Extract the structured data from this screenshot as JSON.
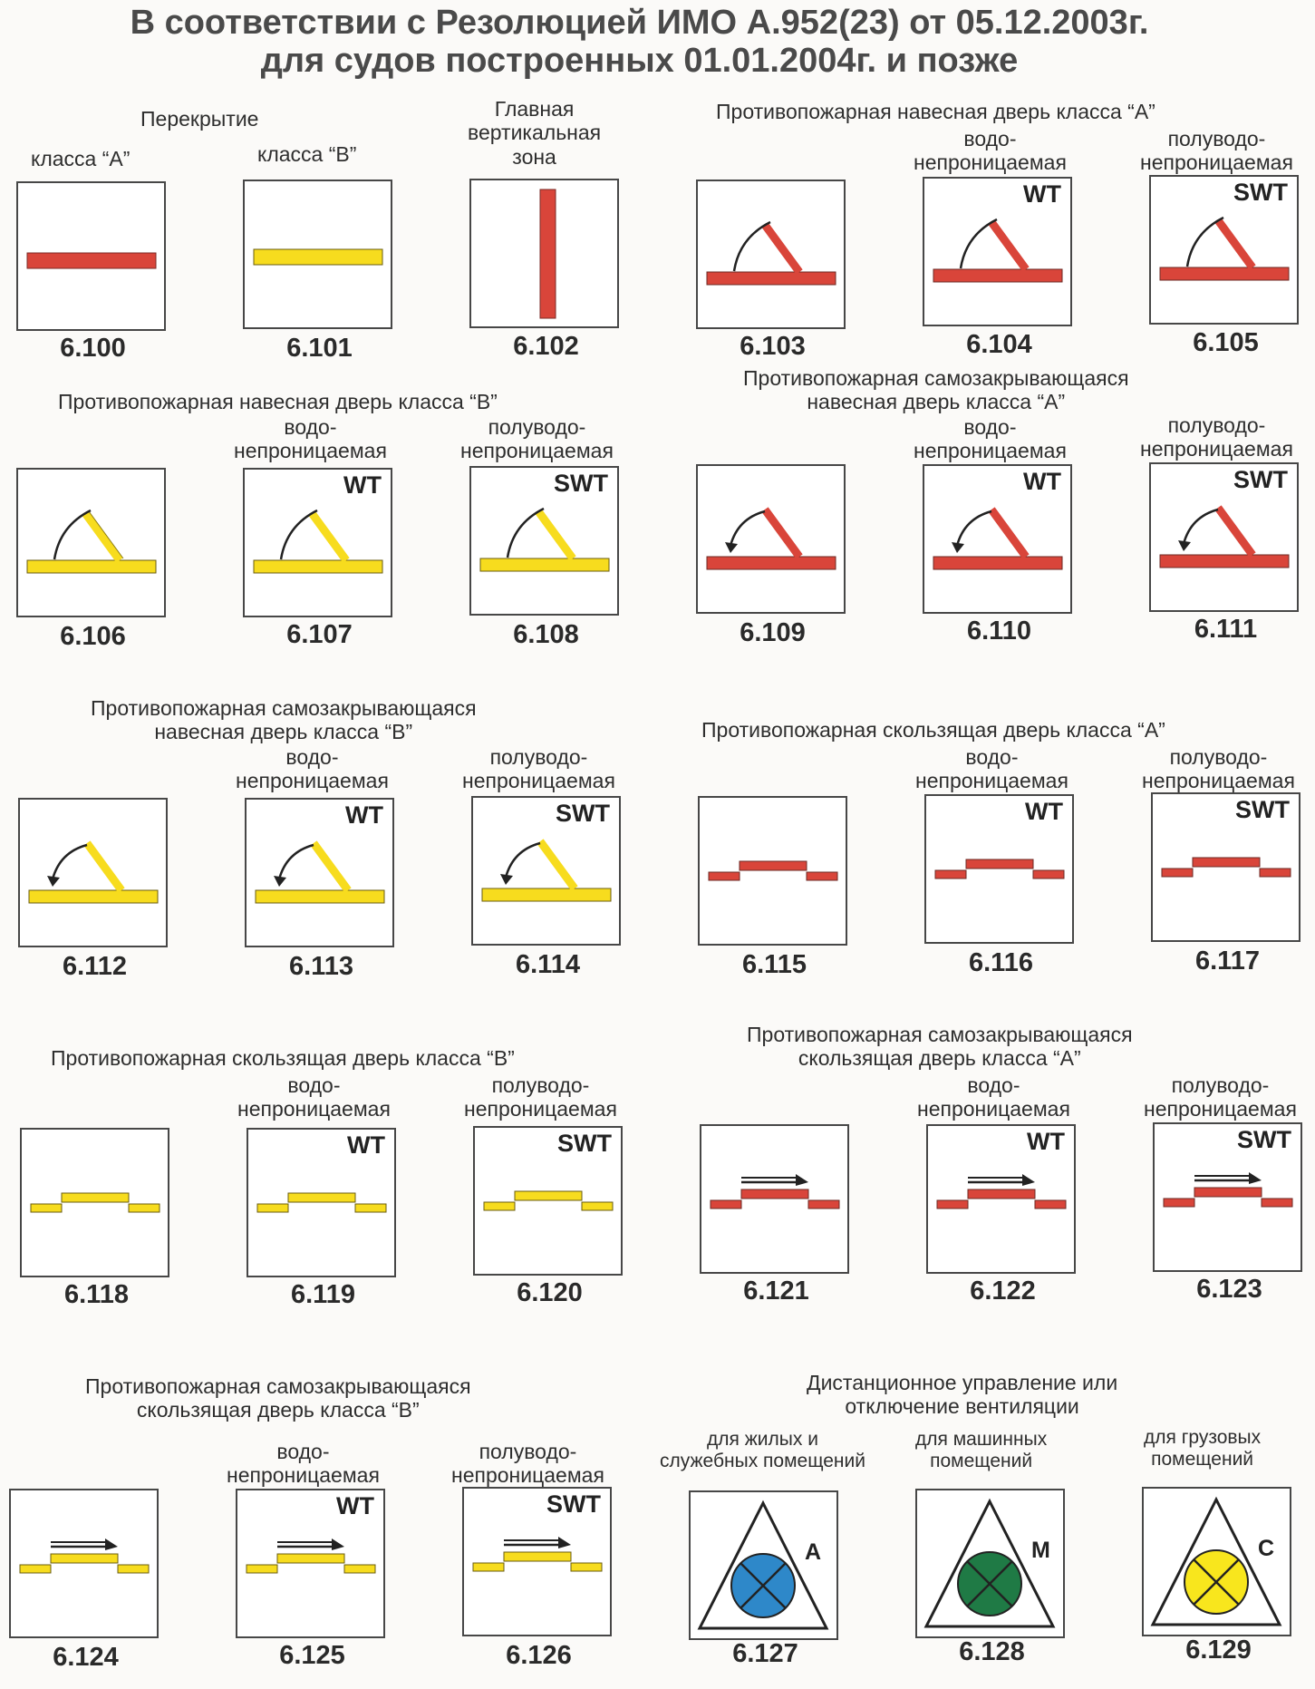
{
  "title": {
    "line1": "В соответствии с Резолюцией ИМО А.952(23) от 05.12.2003г.",
    "line2": "для судов построенных 01.01.2004г. и позже"
  },
  "colors": {
    "class_a_red": "#d9453a",
    "class_b_yellow": "#f7dc1e",
    "outline": "#3a3a3a",
    "vent_blue": "#2e88c9",
    "vent_green": "#1f7a45",
    "vent_yellow": "#f8e61d"
  },
  "sections": {
    "s1": {
      "title": "Перекрытие",
      "class_a": "класса “A”",
      "class_b": "класса “B”",
      "main_zone": "Главная\nвертикальная\nзона",
      "codes": [
        "6.100",
        "6.101",
        "6.102"
      ]
    },
    "s2": {
      "title": "Противопожарная навесная дверь класса “A”",
      "wt": "водо-\nнепроницаемая",
      "swt": "полуводо-\nнепроницаемая",
      "codes": [
        "6.103",
        "6.104",
        "6.105"
      ]
    },
    "s3": {
      "title": "Противопожарная навесная дверь класса “B”",
      "wt": "водо-\nнепроницаемая",
      "swt": "полуводо-\nнепроницаемая",
      "codes": [
        "6.106",
        "6.107",
        "6.108"
      ]
    },
    "s4": {
      "title": "Противопожарная самозакрывающаяся\nнавесная дверь класса “A”",
      "wt": "водо-\nнепроницаемая",
      "swt": "полуводо-\nнепроницаемая",
      "codes": [
        "6.109",
        "6.110",
        "6.111"
      ]
    },
    "s5": {
      "title": "Противопожарная самозакрывающаяся\nнавесная дверь класса “B”",
      "wt": "водо-\nнепроницаемая",
      "swt": "полуводо-\nнепроницаемая",
      "codes": [
        "6.112",
        "6.113",
        "6.114"
      ]
    },
    "s6": {
      "title": "Противопожарная скользящая дверь класса “A”",
      "wt": "водо-\nнепроницаемая",
      "swt": "полуводо-\nнепроницаемая",
      "codes": [
        "6.115",
        "6.116",
        "6.117"
      ]
    },
    "s7": {
      "title": "Противопожарная скользящая дверь класса “B”",
      "wt": "водо-\nнепроницаемая",
      "swt": "полуводо-\nнепроницаемая",
      "codes": [
        "6.118",
        "6.119",
        "6.120"
      ]
    },
    "s8": {
      "title": "Противопожарная самозакрывающаяся\nскользящая дверь класса “A”",
      "wt": "водо-\nнепроницаемая",
      "swt": "полуводо-\nнепроницаемая",
      "codes": [
        "6.121",
        "6.122",
        "6.123"
      ]
    },
    "s9": {
      "title": "Противопожарная самозакрывающаяся\nскользящая дверь класса “B”",
      "wt": "водо-\nнепроницаемая",
      "swt": "полуводо-\nнепроницаемая",
      "codes": [
        "6.124",
        "6.125",
        "6.126"
      ]
    },
    "s10": {
      "title": "Дистанционное управление или\nотключение вентиляции",
      "living": "для жилых и\nслужебных помещений",
      "machinery": "для машинных\nпомещений",
      "cargo": "для грузовых\nпомещений",
      "codes": [
        "6.127",
        "6.128",
        "6.129"
      ]
    }
  },
  "tags": {
    "wt": "WT",
    "swt": "SWT",
    "a": "A",
    "m": "M",
    "c": "C"
  }
}
